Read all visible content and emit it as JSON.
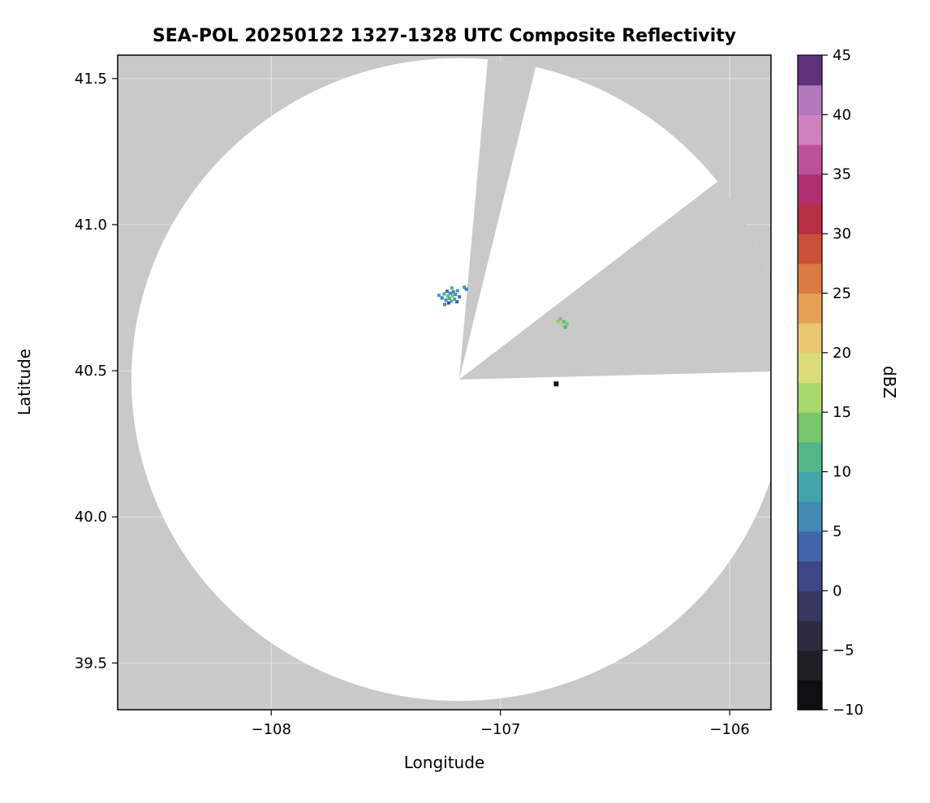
{
  "figure": {
    "background": "#ffffff"
  },
  "chart_data": {
    "type": "heatmap",
    "subtype": "radar-ppi-composite-reflectivity",
    "title": "SEA-POL 20250122 1327-1328 UTC Composite Reflectivity",
    "xlabel": "Longitude",
    "ylabel": "Latitude",
    "xlim": [
      -108.67,
      -105.82
    ],
    "ylim": [
      39.34,
      41.58
    ],
    "grid": "faint",
    "no_data_color": "#c9c9c9",
    "coverage_color": "#ffffff",
    "frame_color": "#000000",
    "xticks": [
      {
        "value": -108,
        "label": "−108"
      },
      {
        "value": -107,
        "label": "−107"
      },
      {
        "value": -106,
        "label": "−106"
      }
    ],
    "yticks": [
      {
        "value": 39.5,
        "label": "39.5"
      },
      {
        "value": 40.0,
        "label": "40.0"
      },
      {
        "value": 40.5,
        "label": "40.5"
      },
      {
        "value": 41.0,
        "label": "41.0"
      },
      {
        "value": 41.5,
        "label": "41.5"
      }
    ],
    "radar": {
      "center_lon": -107.18,
      "center_lat": 40.47,
      "range_lon_deg": 1.43,
      "range_lat_deg": 1.1,
      "blocked_sectors_deg": [
        [
          5,
          13.5
        ],
        [
          52,
          88.5
        ]
      ]
    },
    "echoes": [
      {
        "lon": -107.268,
        "lat": 40.758,
        "dbz": 8
      },
      {
        "lon": -107.255,
        "lat": 40.749,
        "dbz": 5
      },
      {
        "lon": -107.246,
        "lat": 40.763,
        "dbz": 10
      },
      {
        "lon": -107.238,
        "lat": 40.742,
        "dbz": 7
      },
      {
        "lon": -107.233,
        "lat": 40.772,
        "dbz": 4
      },
      {
        "lon": -107.229,
        "lat": 40.756,
        "dbz": 12
      },
      {
        "lon": -107.223,
        "lat": 40.748,
        "dbz": 9
      },
      {
        "lon": -107.219,
        "lat": 40.765,
        "dbz": 6
      },
      {
        "lon": -107.214,
        "lat": 40.738,
        "dbz": 11
      },
      {
        "lon": -107.209,
        "lat": 40.757,
        "dbz": 13
      },
      {
        "lon": -107.205,
        "lat": 40.77,
        "dbz": 5
      },
      {
        "lon": -107.2,
        "lat": 40.745,
        "dbz": 9
      },
      {
        "lon": -107.196,
        "lat": 40.761,
        "dbz": 7
      },
      {
        "lon": -107.19,
        "lat": 40.736,
        "dbz": 4
      },
      {
        "lon": -107.243,
        "lat": 40.727,
        "dbz": 6
      },
      {
        "lon": -107.212,
        "lat": 40.783,
        "dbz": 10
      },
      {
        "lon": -107.187,
        "lat": 40.774,
        "dbz": 8
      },
      {
        "lon": -107.226,
        "lat": 40.732,
        "dbz": 2
      },
      {
        "lon": -107.179,
        "lat": 40.753,
        "dbz": 5
      },
      {
        "lon": -107.158,
        "lat": 40.786,
        "dbz": 9
      },
      {
        "lon": -107.149,
        "lat": 40.779,
        "dbz": 5
      },
      {
        "lon": -106.749,
        "lat": 40.669,
        "dbz": 15
      },
      {
        "lon": -106.739,
        "lat": 40.677,
        "dbz": 13
      },
      {
        "lon": -106.732,
        "lat": 40.658,
        "dbz": 16
      },
      {
        "lon": -106.723,
        "lat": 40.668,
        "dbz": 12
      },
      {
        "lon": -106.717,
        "lat": 40.649,
        "dbz": 10
      },
      {
        "lon": -106.709,
        "lat": 40.661,
        "dbz": 14
      },
      {
        "lon": -106.757,
        "lat": 40.455,
        "dbz": -8,
        "size": 6
      }
    ],
    "colorbar": {
      "label": "dBZ",
      "min": -10,
      "max": 45,
      "band_step": 2.5,
      "ticks": [
        {
          "value": -10,
          "label": "−10"
        },
        {
          "value": -5,
          "label": "−5"
        },
        {
          "value": 0,
          "label": "0"
        },
        {
          "value": 5,
          "label": "5"
        },
        {
          "value": 10,
          "label": "10"
        },
        {
          "value": 15,
          "label": "15"
        },
        {
          "value": 20,
          "label": "20"
        },
        {
          "value": 25,
          "label": "25"
        },
        {
          "value": 30,
          "label": "30"
        },
        {
          "value": 35,
          "label": "35"
        },
        {
          "value": 40,
          "label": "40"
        },
        {
          "value": 45,
          "label": "45"
        }
      ],
      "stops": [
        {
          "value": -10,
          "color": "#060606"
        },
        {
          "value": -7.5,
          "color": "#17171d"
        },
        {
          "value": -5,
          "color": "#26262e"
        },
        {
          "value": -2.5,
          "color": "#323252"
        },
        {
          "value": 0,
          "color": "#3a3a6b"
        },
        {
          "value": 2.5,
          "color": "#3f51a0"
        },
        {
          "value": 5,
          "color": "#4277b4"
        },
        {
          "value": 7.5,
          "color": "#3f9bb4"
        },
        {
          "value": 10,
          "color": "#42ad9b"
        },
        {
          "value": 12.5,
          "color": "#5fbe74"
        },
        {
          "value": 15,
          "color": "#90d063"
        },
        {
          "value": 17.5,
          "color": "#c6e070"
        },
        {
          "value": 20,
          "color": "#ecda7f"
        },
        {
          "value": 22.5,
          "color": "#e9b45e"
        },
        {
          "value": 25,
          "color": "#e08f4a"
        },
        {
          "value": 27.5,
          "color": "#d26639"
        },
        {
          "value": 30,
          "color": "#c23b33"
        },
        {
          "value": 32.5,
          "color": "#ae2355"
        },
        {
          "value": 35,
          "color": "#b13c88"
        },
        {
          "value": 37.5,
          "color": "#c765ab"
        },
        {
          "value": 40,
          "color": "#d79ad0"
        },
        {
          "value": 42.5,
          "color": "#8f55ac"
        },
        {
          "value": 45,
          "color": "#2f0c4a"
        }
      ]
    }
  }
}
